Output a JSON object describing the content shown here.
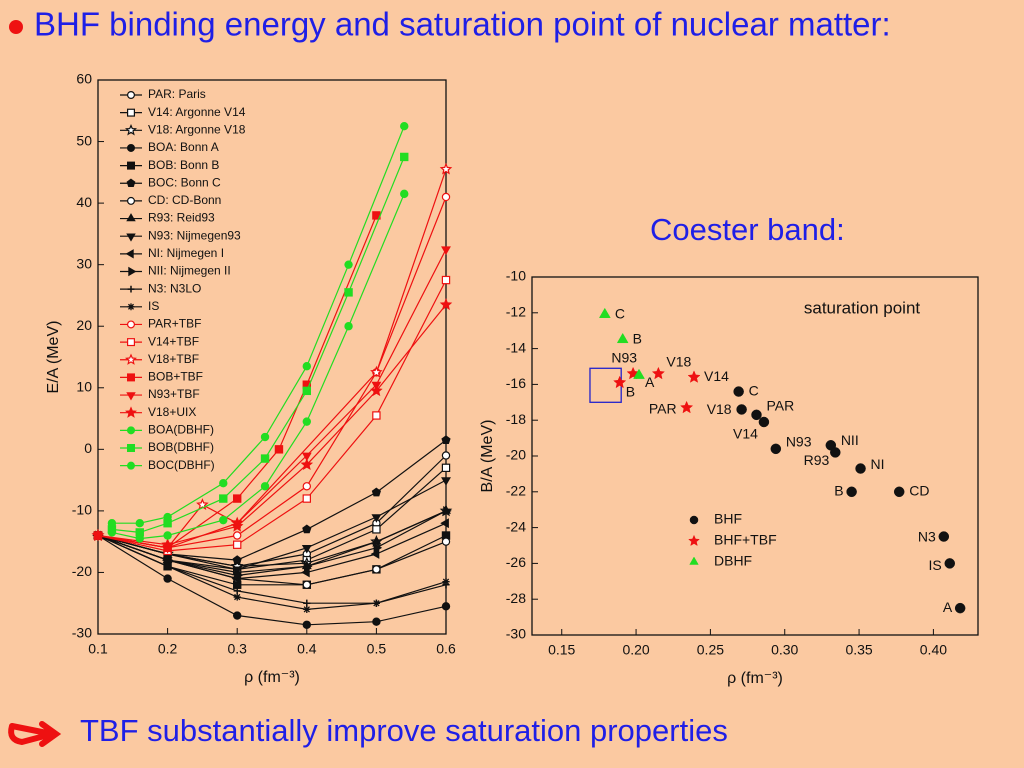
{
  "header": {
    "title": "BHF binding energy and saturation point of nuclear matter:"
  },
  "subtitle": "Coester band:",
  "footer": "TBF substantially improve saturation properties",
  "chart_data": [
    {
      "type": "line",
      "xlabel": "ρ (fm⁻³)",
      "ylabel": "E/A (MeV)",
      "xlim": [
        0.1,
        0.6
      ],
      "xticks": [
        0.1,
        0.2,
        0.3,
        0.4,
        0.5,
        0.6
      ],
      "ylim": [
        -30,
        60
      ],
      "yticks": [
        -30,
        -20,
        -10,
        0,
        10,
        20,
        30,
        40,
        50,
        60
      ],
      "series": [
        {
          "name": "PAR: Paris",
          "color": "#111111",
          "marker": "circle-open",
          "x": [
            0.1,
            0.2,
            0.3,
            0.4,
            0.5,
            0.6
          ],
          "values": [
            -14,
            -17,
            -19,
            -17,
            -12,
            -1
          ]
        },
        {
          "name": "V14: Argonne V14",
          "color": "#111111",
          "marker": "square-open",
          "x": [
            0.1,
            0.2,
            0.3,
            0.4,
            0.5,
            0.6
          ],
          "values": [
            -14,
            -17,
            -19.5,
            -18,
            -13,
            -3
          ]
        },
        {
          "name": "V18: Argonne V18",
          "color": "#111111",
          "marker": "star-open",
          "x": [
            0.1,
            0.2,
            0.3,
            0.4,
            0.5,
            0.6
          ],
          "values": [
            -14,
            -17,
            -19,
            -18.5,
            -15,
            -10
          ]
        },
        {
          "name": "BOA: Bonn A",
          "color": "#111111",
          "marker": "circle",
          "x": [
            0.1,
            0.2,
            0.3,
            0.4,
            0.5,
            0.6
          ],
          "values": [
            -14,
            -21,
            -27,
            -28.5,
            -28,
            -25.5
          ]
        },
        {
          "name": "BOB: Bonn B",
          "color": "#111111",
          "marker": "square",
          "x": [
            0.1,
            0.2,
            0.3,
            0.4,
            0.5,
            0.6
          ],
          "values": [
            -14,
            -19,
            -22,
            -22,
            -19.5,
            -14
          ]
        },
        {
          "name": "BOC: Bonn C",
          "color": "#111111",
          "marker": "pentagon",
          "x": [
            0.1,
            0.2,
            0.3,
            0.4,
            0.5,
            0.6
          ],
          "values": [
            -14,
            -17,
            -18,
            -13,
            -7,
            1.5
          ]
        },
        {
          "name": "CD: CD-Bonn",
          "color": "#111111",
          "marker": "circle-open",
          "x": [
            0.1,
            0.2,
            0.3,
            0.4,
            0.5,
            0.6
          ],
          "values": [
            -14,
            -18,
            -21,
            -22,
            -19.5,
            -15
          ]
        },
        {
          "name": "R93: Reid93",
          "color": "#111111",
          "marker": "triangle",
          "x": [
            0.1,
            0.2,
            0.3,
            0.4,
            0.5,
            0.6
          ],
          "values": [
            -14,
            -18,
            -20,
            -19,
            -15,
            -10
          ]
        },
        {
          "name": "N93: Nijmegen93",
          "color": "#111111",
          "marker": "triangle-down",
          "x": [
            0.1,
            0.2,
            0.3,
            0.4,
            0.5,
            0.6
          ],
          "values": [
            -14,
            -18,
            -19.5,
            -16,
            -11,
            -5
          ]
        },
        {
          "name": "NI: Nijmegen I",
          "color": "#111111",
          "marker": "triangle-left",
          "x": [
            0.1,
            0.2,
            0.3,
            0.4,
            0.5,
            0.6
          ],
          "values": [
            -14,
            -18,
            -21,
            -20,
            -17,
            -12
          ]
        },
        {
          "name": "NII: Nijmegen II",
          "color": "#111111",
          "marker": "triangle-right",
          "x": [
            0.1,
            0.2,
            0.3,
            0.4,
            0.5,
            0.6
          ],
          "values": [
            -14,
            -18,
            -20.5,
            -19,
            -16,
            -10
          ]
        },
        {
          "name": "N3: N3LO",
          "color": "#111111",
          "marker": "plus",
          "x": [
            0.1,
            0.2,
            0.3,
            0.4,
            0.5,
            0.6
          ],
          "values": [
            -14,
            -19,
            -23,
            -25,
            -25,
            -22
          ]
        },
        {
          "name": "IS",
          "color": "#111111",
          "marker": "asterisk",
          "x": [
            0.1,
            0.2,
            0.3,
            0.4,
            0.5,
            0.6
          ],
          "values": [
            -14,
            -19,
            -24,
            -26,
            -25,
            -21.5
          ]
        },
        {
          "name": "PAR+TBF",
          "color": "#ee1111",
          "marker": "circle-open",
          "x": [
            0.1,
            0.2,
            0.3,
            0.4,
            0.5,
            0.6
          ],
          "values": [
            -14,
            -16,
            -14,
            -6,
            12.5,
            41
          ]
        },
        {
          "name": "V14+TBF",
          "color": "#ee1111",
          "marker": "square-open",
          "x": [
            0.1,
            0.2,
            0.3,
            0.4,
            0.5,
            0.6
          ],
          "values": [
            -14,
            -16.5,
            -15.5,
            -8,
            5.5,
            27.5
          ]
        },
        {
          "name": "V18+TBF",
          "color": "#ee1111",
          "marker": "star-open",
          "x": [
            0.1,
            0.2,
            0.25,
            0.3,
            0.5,
            0.6
          ],
          "values": [
            -14,
            -16,
            -9,
            -12,
            12.5,
            45.5
          ]
        },
        {
          "name": "BOB+TBF",
          "color": "#ee1111",
          "marker": "square",
          "x": [
            0.1,
            0.2,
            0.3,
            0.36,
            0.4,
            0.5
          ],
          "values": [
            -14,
            -16,
            -8,
            0,
            10.5,
            38
          ]
        },
        {
          "name": "N93+TBF",
          "color": "#ee1111",
          "marker": "triangle-down",
          "x": [
            0.1,
            0.2,
            0.3,
            0.4,
            0.5,
            0.6
          ],
          "values": [
            -14,
            -16,
            -12,
            -1,
            10.5,
            32.5
          ]
        },
        {
          "name": "V18+UIX",
          "color": "#ee1111",
          "marker": "star",
          "x": [
            0.1,
            0.2,
            0.3,
            0.4,
            0.5,
            0.6
          ],
          "values": [
            -14,
            -15.5,
            -12.5,
            -2.5,
            9.5,
            23.5
          ]
        },
        {
          "name": "BOA(DBHF)",
          "color": "#22dd22",
          "marker": "circle",
          "x": [
            0.12,
            0.16,
            0.2,
            0.28,
            0.34,
            0.4,
            0.46,
            0.54
          ],
          "values": [
            -12,
            -12,
            -11,
            -5.5,
            2,
            13.5,
            30,
            52.5
          ]
        },
        {
          "name": "BOB(DBHF)",
          "color": "#22dd22",
          "marker": "square",
          "x": [
            0.12,
            0.16,
            0.2,
            0.28,
            0.34,
            0.4,
            0.46,
            0.54
          ],
          "values": [
            -13,
            -13.5,
            -12,
            -8,
            -1.5,
            9.5,
            25.5,
            47.5
          ]
        },
        {
          "name": "BOC(DBHF)",
          "color": "#22dd22",
          "marker": "circle",
          "x": [
            0.12,
            0.16,
            0.2,
            0.28,
            0.34,
            0.4,
            0.46,
            0.54
          ],
          "values": [
            -13.5,
            -14.5,
            -14,
            -11.5,
            -6,
            4.5,
            20,
            41.5
          ]
        }
      ]
    },
    {
      "type": "scatter",
      "xlabel": "ρ (fm⁻³)",
      "ylabel": "B/A  (MeV)",
      "annotation": "saturation point",
      "xlim": [
        0.13,
        0.43
      ],
      "xticks": [
        0.15,
        {
          "value": 0.2,
          "label": "0.20"
        },
        0.25,
        {
          "value": 0.3,
          "label": "0.30"
        },
        0.35,
        {
          "value": 0.4,
          "label": "0.40"
        }
      ],
      "ylim": [
        -30,
        -10
      ],
      "yticks": [
        -30,
        -28,
        -26,
        -24,
        -22,
        -20,
        -18,
        -16,
        -14,
        -12,
        -10
      ],
      "saturation_box": {
        "x": [
          0.169,
          0.19
        ],
        "y": [
          -17,
          -15.1
        ]
      },
      "series": [
        {
          "name": "BHF",
          "color": "#111111",
          "marker": "circle",
          "labels": [
            "C",
            "V18",
            "PAR",
            "V14",
            "N93",
            "NII",
            "R93",
            "NI",
            "B",
            "CD",
            "N3",
            "IS",
            "A"
          ],
          "x": [
            0.269,
            0.271,
            0.281,
            0.286,
            0.294,
            0.331,
            0.334,
            0.351,
            0.345,
            0.377,
            0.407,
            0.411,
            0.418
          ],
          "values": [
            -16.4,
            -17.4,
            -17.7,
            -18.1,
            -19.6,
            -19.4,
            -19.8,
            -20.7,
            -22,
            -22,
            -24.5,
            -26,
            -28.5
          ]
        },
        {
          "name": "BHF+TBF",
          "color": "#ee1111",
          "marker": "star",
          "labels": [
            "N93",
            "V18",
            "V14",
            "PAR",
            "B"
          ],
          "x": [
            0.198,
            0.215,
            0.239,
            0.234,
            0.189
          ],
          "values": [
            -15.4,
            -15.4,
            -15.6,
            -17.3,
            -15.9
          ]
        },
        {
          "name": "DBHF",
          "color": "#22dd22",
          "marker": "triangle",
          "labels": [
            "C",
            "B",
            "A"
          ],
          "x": [
            0.179,
            0.191,
            0.202
          ],
          "values": [
            -12.1,
            -13.5,
            -15.5
          ]
        }
      ]
    }
  ]
}
